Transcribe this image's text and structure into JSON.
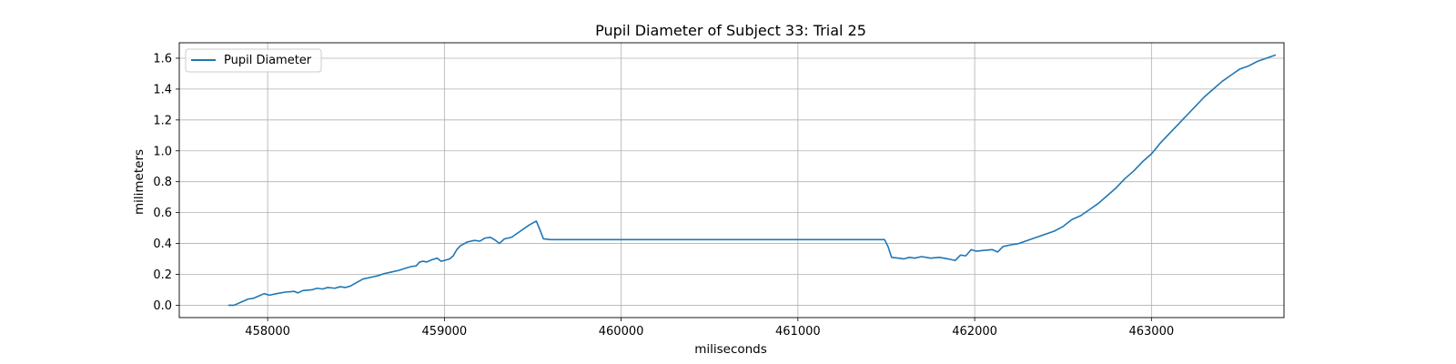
{
  "chart_data": {
    "type": "line",
    "title": "Pupil Diameter of Subject 33: Trial 25",
    "xlabel": "miliseconds",
    "ylabel": "milimeters",
    "xlim": [
      457500,
      463750
    ],
    "ylim": [
      -0.08,
      1.7
    ],
    "xticks": [
      458000,
      459000,
      460000,
      461000,
      462000,
      463000
    ],
    "yticks": [
      0.0,
      0.2,
      0.4,
      0.6,
      0.8,
      1.0,
      1.2,
      1.4,
      1.6
    ],
    "ytick_labels": [
      "0.0",
      "0.2",
      "0.4",
      "0.6",
      "0.8",
      "1.0",
      "1.2",
      "1.4",
      "1.6"
    ],
    "grid": true,
    "legend_position": "top-left",
    "series": [
      {
        "name": "Pupil Diameter",
        "color": "#1f77b4",
        "points": [
          [
            457780,
            0.0
          ],
          [
            457810,
            0.0
          ],
          [
            457850,
            0.02
          ],
          [
            457890,
            0.04
          ],
          [
            457920,
            0.045
          ],
          [
            457950,
            0.06
          ],
          [
            457980,
            0.075
          ],
          [
            458010,
            0.065
          ],
          [
            458050,
            0.075
          ],
          [
            458100,
            0.085
          ],
          [
            458150,
            0.09
          ],
          [
            458170,
            0.08
          ],
          [
            458200,
            0.095
          ],
          [
            458250,
            0.1
          ],
          [
            458280,
            0.11
          ],
          [
            458310,
            0.105
          ],
          [
            458340,
            0.115
          ],
          [
            458380,
            0.11
          ],
          [
            458410,
            0.12
          ],
          [
            458440,
            0.115
          ],
          [
            458470,
            0.125
          ],
          [
            458500,
            0.145
          ],
          [
            458540,
            0.17
          ],
          [
            458580,
            0.18
          ],
          [
            458620,
            0.19
          ],
          [
            458660,
            0.205
          ],
          [
            458700,
            0.215
          ],
          [
            458740,
            0.225
          ],
          [
            458780,
            0.24
          ],
          [
            458810,
            0.25
          ],
          [
            458840,
            0.255
          ],
          [
            458860,
            0.28
          ],
          [
            458880,
            0.285
          ],
          [
            458900,
            0.28
          ],
          [
            458930,
            0.295
          ],
          [
            458960,
            0.305
          ],
          [
            458980,
            0.285
          ],
          [
            459000,
            0.29
          ],
          [
            459030,
            0.3
          ],
          [
            459050,
            0.32
          ],
          [
            459070,
            0.36
          ],
          [
            459090,
            0.385
          ],
          [
            459130,
            0.41
          ],
          [
            459170,
            0.42
          ],
          [
            459200,
            0.415
          ],
          [
            459230,
            0.435
          ],
          [
            459260,
            0.44
          ],
          [
            459290,
            0.42
          ],
          [
            459310,
            0.4
          ],
          [
            459340,
            0.43
          ],
          [
            459380,
            0.44
          ],
          [
            459430,
            0.48
          ],
          [
            459480,
            0.52
          ],
          [
            459520,
            0.545
          ],
          [
            459540,
            0.49
          ],
          [
            459560,
            0.43
          ],
          [
            459600,
            0.425
          ],
          [
            461450,
            0.425
          ],
          [
            461490,
            0.425
          ],
          [
            461510,
            0.38
          ],
          [
            461530,
            0.31
          ],
          [
            461570,
            0.305
          ],
          [
            461600,
            0.3
          ],
          [
            461630,
            0.31
          ],
          [
            461660,
            0.305
          ],
          [
            461700,
            0.315
          ],
          [
            461750,
            0.305
          ],
          [
            461800,
            0.31
          ],
          [
            461850,
            0.3
          ],
          [
            461890,
            0.29
          ],
          [
            461920,
            0.325
          ],
          [
            461950,
            0.32
          ],
          [
            461980,
            0.36
          ],
          [
            462010,
            0.35
          ],
          [
            462050,
            0.355
          ],
          [
            462100,
            0.36
          ],
          [
            462130,
            0.345
          ],
          [
            462160,
            0.38
          ],
          [
            462200,
            0.39
          ],
          [
            462250,
            0.4
          ],
          [
            462300,
            0.42
          ],
          [
            462350,
            0.44
          ],
          [
            462400,
            0.46
          ],
          [
            462450,
            0.48
          ],
          [
            462500,
            0.51
          ],
          [
            462550,
            0.555
          ],
          [
            462600,
            0.58
          ],
          [
            462650,
            0.62
          ],
          [
            462700,
            0.66
          ],
          [
            462750,
            0.71
          ],
          [
            462800,
            0.76
          ],
          [
            462850,
            0.82
          ],
          [
            462900,
            0.87
          ],
          [
            462950,
            0.93
          ],
          [
            463000,
            0.98
          ],
          [
            463050,
            1.05
          ],
          [
            463100,
            1.11
          ],
          [
            463150,
            1.17
          ],
          [
            463200,
            1.23
          ],
          [
            463250,
            1.29
          ],
          [
            463300,
            1.35
          ],
          [
            463350,
            1.4
          ],
          [
            463400,
            1.45
          ],
          [
            463450,
            1.49
          ],
          [
            463500,
            1.53
          ],
          [
            463550,
            1.55
          ],
          [
            463600,
            1.58
          ],
          [
            463650,
            1.6
          ],
          [
            463700,
            1.62
          ]
        ]
      }
    ]
  }
}
